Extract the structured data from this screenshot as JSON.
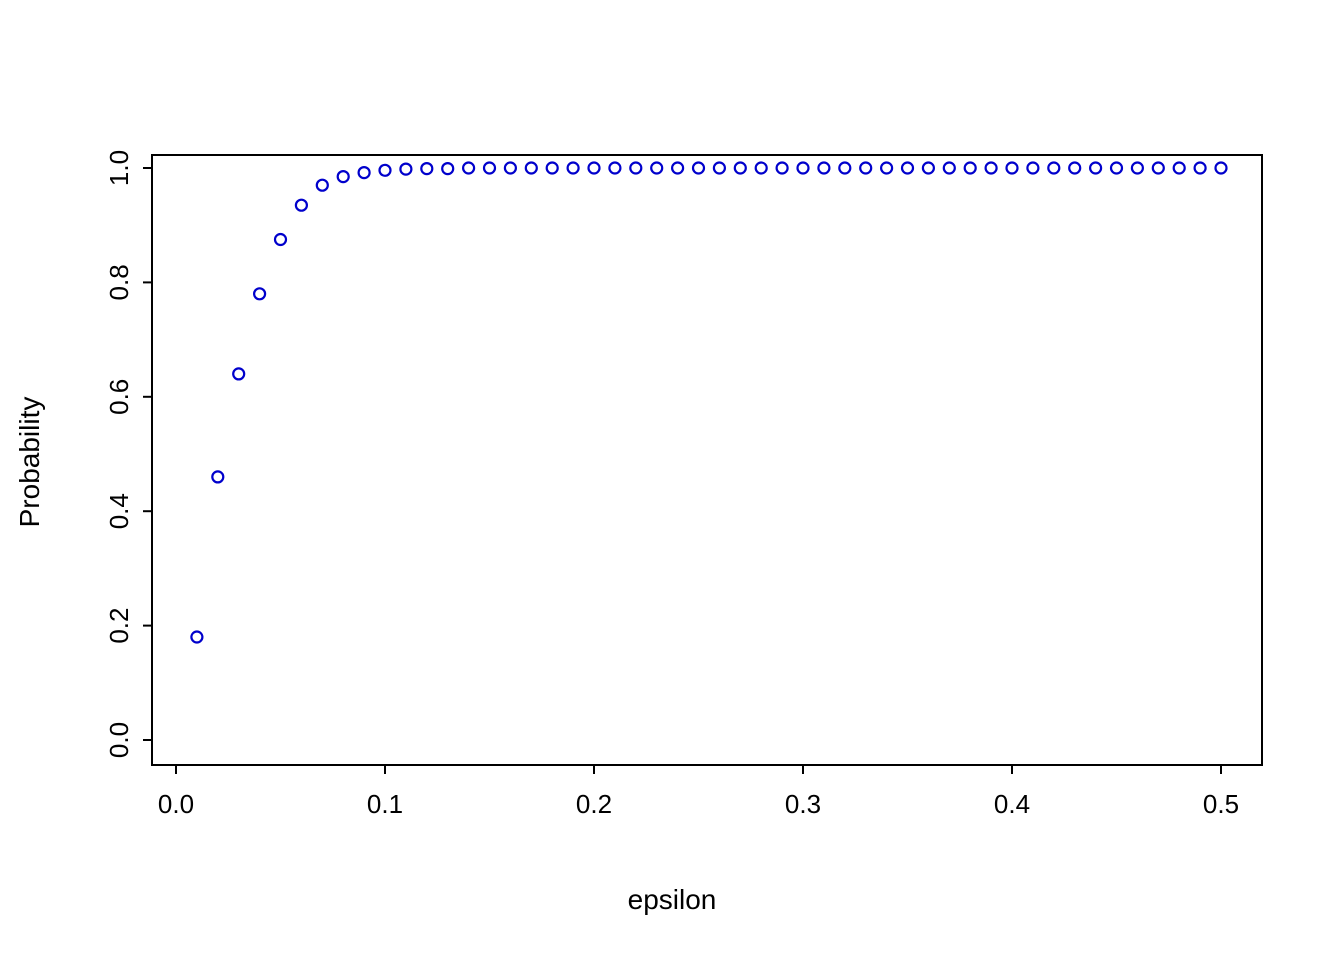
{
  "figure": {
    "background": "#ffffff",
    "axis_color": "#000000",
    "point_color": "#0000CC"
  },
  "chart_data": {
    "type": "scatter",
    "title": "",
    "xlabel": "epsilon",
    "ylabel": "Probability",
    "xlim": [
      0.0,
      0.52
    ],
    "ylim": [
      0.0,
      1.0
    ],
    "grid": false,
    "legend": false,
    "marker": "open-circle",
    "x_ticks": {
      "values": [
        0.0,
        0.1,
        0.2,
        0.3,
        0.4,
        0.5
      ],
      "labels": [
        "0.0",
        "0.1",
        "0.2",
        "0.3",
        "0.4",
        "0.5"
      ]
    },
    "y_ticks": {
      "values": [
        0.0,
        0.2,
        0.4,
        0.6,
        0.8,
        1.0
      ],
      "labels": [
        "0.0",
        "0.2",
        "0.4",
        "0.6",
        "0.8",
        "1.0"
      ]
    },
    "series": [
      {
        "name": "probability",
        "color": "#0000CC",
        "x": [
          0.01,
          0.02,
          0.03,
          0.04,
          0.05,
          0.06,
          0.07,
          0.08,
          0.09,
          0.1,
          0.11,
          0.12,
          0.13,
          0.14,
          0.15,
          0.16,
          0.17,
          0.18,
          0.19,
          0.2,
          0.21,
          0.22,
          0.23,
          0.24,
          0.25,
          0.26,
          0.27,
          0.28,
          0.29,
          0.3,
          0.31,
          0.32,
          0.33,
          0.34,
          0.35,
          0.36,
          0.37,
          0.38,
          0.39,
          0.4,
          0.41,
          0.42,
          0.43,
          0.44,
          0.45,
          0.46,
          0.47,
          0.48,
          0.49,
          0.5
        ],
        "y": [
          0.18,
          0.46,
          0.64,
          0.78,
          0.875,
          0.935,
          0.97,
          0.985,
          0.992,
          0.996,
          0.998,
          0.999,
          0.999,
          1.0,
          1.0,
          1.0,
          1.0,
          1.0,
          1.0,
          1.0,
          1.0,
          1.0,
          1.0,
          1.0,
          1.0,
          1.0,
          1.0,
          1.0,
          1.0,
          1.0,
          1.0,
          1.0,
          1.0,
          1.0,
          1.0,
          1.0,
          1.0,
          1.0,
          1.0,
          1.0,
          1.0,
          1.0,
          1.0,
          1.0,
          1.0,
          1.0,
          1.0,
          1.0,
          1.0,
          1.0
        ]
      }
    ]
  }
}
